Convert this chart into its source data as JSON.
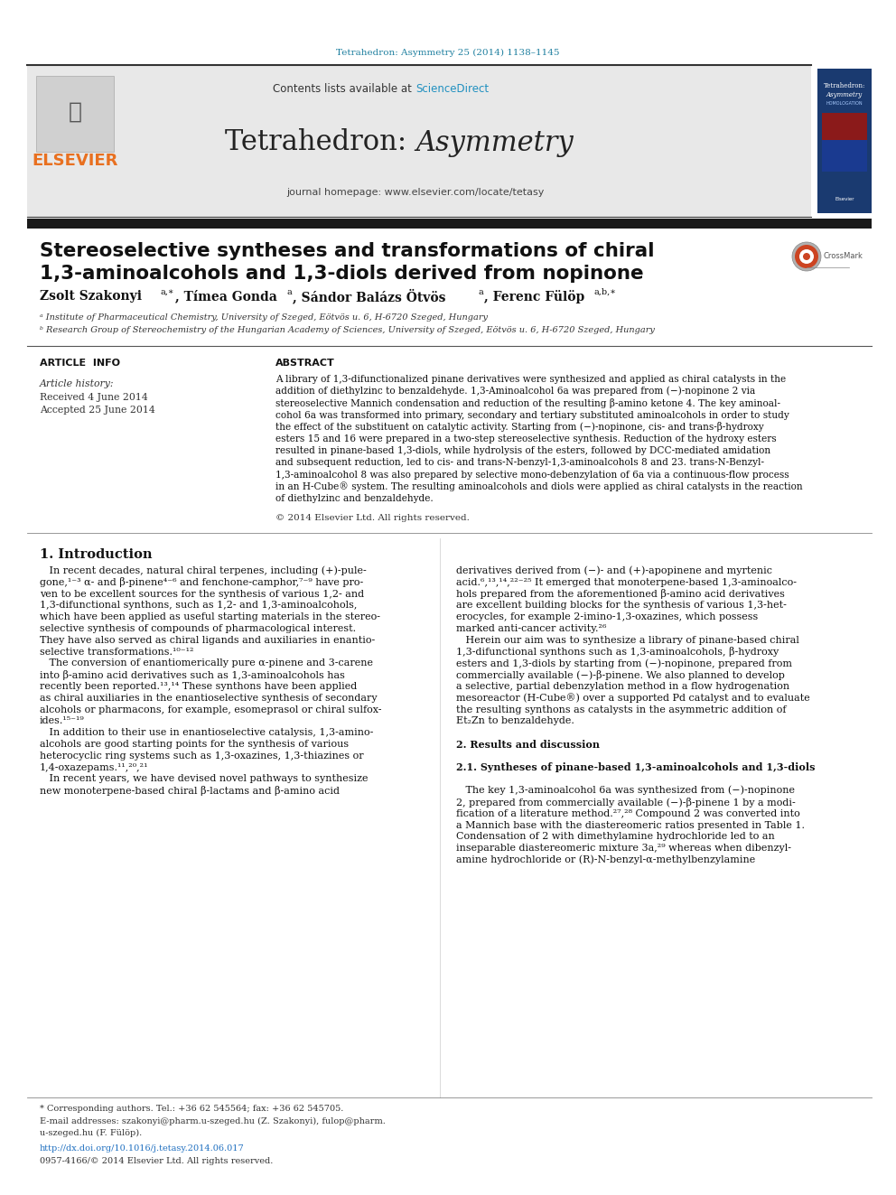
{
  "page_bg": "#ffffff",
  "top_citation": "Tetrahedron: Asymmetry 25 (2014) 1138–1145",
  "top_citation_color": "#2080a0",
  "header_bg": "#e8e8e8",
  "sciencedirect_color": "#2090c0",
  "homepage_line": "journal homepage: www.elsevier.com/locate/tetasy",
  "elsevier_color": "#e87020",
  "dark_bar_color": "#1a1a1a",
  "article_title_line1": "Stereoselective syntheses and transformations of chiral",
  "article_title_line2": "1,3-aminoalcohols and 1,3-diols derived from nopinone",
  "article_info_label": "ARTICLE  INFO",
  "abstract_label": "ABSTRACT",
  "article_history": "Article history:",
  "received": "Received 4 June 2014",
  "accepted": "Accepted 25 June 2014",
  "copyright": "© 2014 Elsevier Ltd. All rights reserved.",
  "intro_heading": "1. Introduction",
  "doi_color": "#2070c0",
  "copyright_bottom": "0957-4166/© 2014 Elsevier Ltd. All rights reserved.",
  "abstract_lines": [
    "A library of 1,3-difunctionalized pinane derivatives were synthesized and applied as chiral catalysts in the",
    "addition of diethylzinc to benzaldehyde. 1,3-Aminoalcohol 6a was prepared from (−)-nopinone 2 via",
    "stereoselective Mannich condensation and reduction of the resulting β-amino ketone 4. The key aminoal-",
    "cohol 6a was transformed into primary, secondary and tertiary substituted aminoalcohols in order to study",
    "the effect of the substituent on catalytic activity. Starting from (−)-nopinone, cis- and trans-β-hydroxy",
    "esters 15 and 16 were prepared in a two-step stereoselective synthesis. Reduction of the hydroxy esters",
    "resulted in pinane-based 1,3-diols, while hydrolysis of the esters, followed by DCC-mediated amidation",
    "and subsequent reduction, led to cis- and trans-N-benzyl-1,3-aminoalcohols 8 and 23. trans-N-Benzyl-",
    "1,3-aminoalcohol 8 was also prepared by selective mono-debenzylation of 6a via a continuous-flow process",
    "in an H-Cube® system. The resulting aminoalcohols and diols were applied as chiral catalysts in the reaction",
    "of diethylzinc and benzaldehyde."
  ],
  "col1_lines": [
    "   In recent decades, natural chiral terpenes, including (+)-pule-",
    "gone,¹⁻³ α- and β-pinene⁴⁻⁶ and fenchone-camphor,⁷⁻⁹ have pro-",
    "ven to be excellent sources for the synthesis of various 1,2- and",
    "1,3-difunctional synthons, such as 1,2- and 1,3-aminoalcohols,",
    "which have been applied as useful starting materials in the stereo-",
    "selective synthesis of compounds of pharmacological interest.",
    "They have also served as chiral ligands and auxiliaries in enantio-",
    "selective transformations.¹⁰⁻¹²",
    "   The conversion of enantiomerically pure α-pinene and 3-carene",
    "into β-amino acid derivatives such as 1,3-aminoalcohols has",
    "recently been reported.¹³,¹⁴ These synthons have been applied",
    "as chiral auxiliaries in the enantioselective synthesis of secondary",
    "alcohols or pharmacons, for example, esomeprasol or chiral sulfox-",
    "ides.¹⁵⁻¹⁹",
    "   In addition to their use in enantioselective catalysis, 1,3-amino-",
    "alcohols are good starting points for the synthesis of various",
    "heterocyclic ring systems such as 1,3-oxazines, 1,3-thiazines or",
    "1,4-oxazepams.¹¹,²⁰,²¹",
    "   In recent years, we have devised novel pathways to synthesize",
    "new monoterpene-based chiral β-lactams and β-amino acid"
  ],
  "col2_lines": [
    "derivatives derived from (−)- and (+)-apopinene and myrtenic",
    "acid.⁶,¹³,¹⁴,²²⁻²⁵ It emerged that monoterpene-based 1,3-aminoalco-",
    "hols prepared from the aforementioned β-amino acid derivatives",
    "are excellent building blocks for the synthesis of various 1,3-het-",
    "erocycles, for example 2-imino-1,3-oxazines, which possess",
    "marked anti-cancer activity.²⁶",
    "   Herein our aim was to synthesize a library of pinane-based chiral",
    "1,3-difunctional synthons such as 1,3-aminoalcohols, β-hydroxy",
    "esters and 1,3-diols by starting from (−)-nopinone, prepared from",
    "commercially available (−)-β-pinene. We also planned to develop",
    "a selective, partial debenzylation method in a flow hydrogenation",
    "mesoreactor (H-Cube®) over a supported Pd catalyst and to evaluate",
    "the resulting synthons as catalysts in the asymmetric addition of",
    "Et₂Zn to benzaldehyde.",
    "",
    "2. Results and discussion",
    "",
    "2.1. Syntheses of pinane-based 1,3-aminoalcohols and 1,3-diols",
    "",
    "   The key 1,3-aminoalcohol 6a was synthesized from (−)-nopinone",
    "2, prepared from commercially available (−)-β-pinene 1 by a modi-",
    "fication of a literature method.²⁷,²⁸ Compound 2 was converted into",
    "a Mannich base with the diastereomeric ratios presented in Table 1.",
    "Condensation of 2 with dimethylamine hydrochloride led to an",
    "inseparable diastereomeric mixture 3a,²⁹ whereas when dibenzyl-",
    "amine hydrochloride or (R)-N-benzyl-α-methylbenzylamine"
  ]
}
